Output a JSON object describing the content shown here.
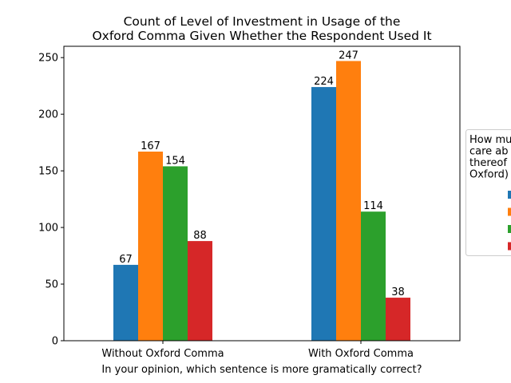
{
  "chart_data": {
    "type": "bar",
    "title_line1": "Count of Level of Investment in Usage of the",
    "title_line2": "Oxford Comma Given Whether the Respondent Used It",
    "xlabel": "In your opinion, which sentence is more gramatically correct?",
    "ylabel": "",
    "categories": [
      "Without Oxford Comma",
      "With Oxford Comma"
    ],
    "ylim": [
      0,
      260
    ],
    "yticks": [
      0,
      50,
      100,
      150,
      200,
      250
    ],
    "series": [
      {
        "values": [
          67,
          224
        ],
        "color": "#1f77b4"
      },
      {
        "values": [
          167,
          247
        ],
        "color": "#ff7f0e"
      },
      {
        "values": [
          154,
          114
        ],
        "color": "#2ca02c"
      },
      {
        "values": [
          88,
          38
        ],
        "color": "#d62728"
      }
    ],
    "legend": {
      "placement": "right, partially cut off",
      "title_lines": [
        "How mu",
        "care ab",
        "thereof",
        "Oxford)"
      ]
    },
    "grid": false
  }
}
